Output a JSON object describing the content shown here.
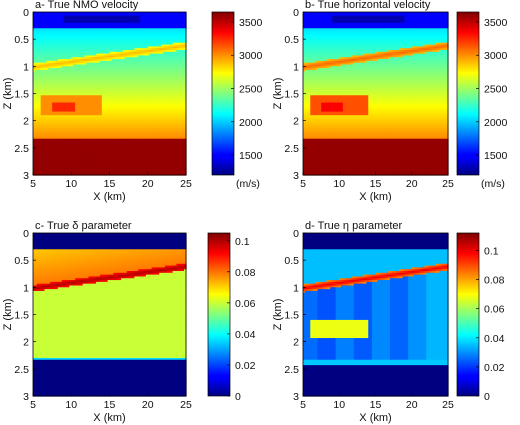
{
  "chart_data": [
    {
      "type": "heatmap",
      "title": "a- True NMO velocity",
      "xlabel": "X (km)",
      "ylabel": "Z (km)",
      "xlim": [
        5,
        25
      ],
      "ylim": [
        0,
        3
      ],
      "y_reversed": true,
      "x_ticks": [
        "5",
        "10",
        "15",
        "20",
        "25"
      ],
      "y_ticks": [
        "0",
        "0.5",
        "1",
        "1.5",
        "2",
        "2.5",
        "3"
      ],
      "colorbar": {
        "min": 1200,
        "max": 3650,
        "ticks": [
          "1500",
          "2000",
          "2500",
          "3000",
          "3500"
        ],
        "unit": "(m/s)"
      },
      "model": {
        "water_bottom_z": 0.3,
        "water_value": 1500,
        "lens_x": [
          9,
          19
        ],
        "lens_z": [
          0.08,
          0.2
        ],
        "lens_value": 1320,
        "interface_z_at_x5": 1.02,
        "interface_z_at_x25": 0.62,
        "interface_value": 2900,
        "gradient": {
          "z_start": 0.3,
          "value_start": 2050,
          "z_end": 2.35,
          "value_end": 3020
        },
        "basement_z": 2.35,
        "basement_value": 3600,
        "anomaly_box": {
          "x": [
            6,
            14
          ],
          "z": [
            1.55,
            1.9
          ],
          "value": 3000
        },
        "anomaly_core": {
          "x": [
            7.5,
            10.5
          ],
          "z": [
            1.68,
            1.84
          ],
          "value": 3250
        }
      }
    },
    {
      "type": "heatmap",
      "title": "b- True horizontal velocity",
      "xlabel": "X (km)",
      "ylabel": "Z (km)",
      "xlim": [
        5,
        25
      ],
      "ylim": [
        0,
        3
      ],
      "y_reversed": true,
      "x_ticks": [
        "5",
        "10",
        "15",
        "20",
        "25"
      ],
      "y_ticks": [
        "0",
        "0.5",
        "1",
        "1.5",
        "2",
        "2.5",
        "3"
      ],
      "colorbar": {
        "min": 1200,
        "max": 3650,
        "ticks": [
          "1500",
          "2000",
          "2500",
          "3000",
          "3500"
        ],
        "unit": "(m/s)"
      },
      "model": {
        "water_bottom_z": 0.3,
        "water_value": 1500,
        "lens_x": [
          9,
          19
        ],
        "lens_z": [
          0.08,
          0.2
        ],
        "lens_value": 1320,
        "interface_z_at_x5": 1.02,
        "interface_z_at_x25": 0.62,
        "interface_value": 3100,
        "gradient": {
          "z_start": 0.3,
          "value_start": 2050,
          "z_end": 2.35,
          "value_end": 3020
        },
        "basement_z": 2.35,
        "basement_value": 3600,
        "anomaly_box": {
          "x": [
            6,
            14
          ],
          "z": [
            1.55,
            1.9
          ],
          "value": 3150
        },
        "anomaly_core": {
          "x": [
            7.5,
            10.5
          ],
          "z": [
            1.68,
            1.84
          ],
          "value": 3350
        }
      }
    },
    {
      "type": "heatmap",
      "title": "c- True δ parameter",
      "xlabel": "X (km)",
      "ylabel": "Z (km)",
      "xlim": [
        5,
        25
      ],
      "ylim": [
        0,
        3
      ],
      "y_reversed": true,
      "x_ticks": [
        "5",
        "10",
        "15",
        "20",
        "25"
      ],
      "y_ticks": [
        "0",
        "0.5",
        "1",
        "1.5",
        "2",
        "2.5",
        "3"
      ],
      "colorbar": {
        "min": 0,
        "max": 0.105,
        "ticks": [
          "0",
          "0.02",
          "0.04",
          "0.06",
          "0.08",
          "0.1"
        ],
        "unit": ""
      },
      "model": {
        "water_bottom_z": 0.3,
        "water_value": 0,
        "upper_layer_value": 0.08,
        "interface_z_at_x5": 1.02,
        "interface_z_at_x25": 0.62,
        "interface_value": 0.1,
        "interface_thickness_z": 0.06,
        "lower_value": 0.06,
        "basement_z": 2.35,
        "basement_value": 0,
        "transition_value": 0.035
      }
    },
    {
      "type": "heatmap",
      "title": "d- True η parameter",
      "xlabel": "X (km)",
      "ylabel": "Z (km)",
      "xlim": [
        5,
        25
      ],
      "ylim": [
        0,
        3
      ],
      "y_reversed": true,
      "x_ticks": [
        "5",
        "10",
        "15",
        "20",
        "25"
      ],
      "y_ticks": [
        "0",
        "0.5",
        "1",
        "1.5",
        "2",
        "2.5",
        "3"
      ],
      "colorbar": {
        "min": 0,
        "max": 0.112,
        "ticks": [
          "0",
          "0.02",
          "0.04",
          "0.06",
          "0.08",
          "0.1"
        ],
        "unit": ""
      },
      "model": {
        "water_bottom_z": 0.3,
        "water_value": 0,
        "upper_layer_value": 0.035,
        "interface_z_at_x5": 1.02,
        "interface_z_at_x25": 0.62,
        "interface_value": 0.1,
        "interface_thickness_z": 0.07,
        "columns_x": [
          5,
          7,
          9.5,
          12,
          14.5,
          17,
          19.5,
          22,
          25
        ],
        "column_values": [
          0.026,
          0.023,
          0.028,
          0.024,
          0.029,
          0.025,
          0.03,
          0.034
        ],
        "lower_band_z": [
          2.35,
          2.45
        ],
        "lower_band_value": 0.036,
        "basement_z": 2.45,
        "basement_value": 0,
        "anomaly_box": {
          "x": [
            6,
            14
          ],
          "z": [
            1.6,
            1.92
          ],
          "value": 0.068
        }
      }
    }
  ]
}
